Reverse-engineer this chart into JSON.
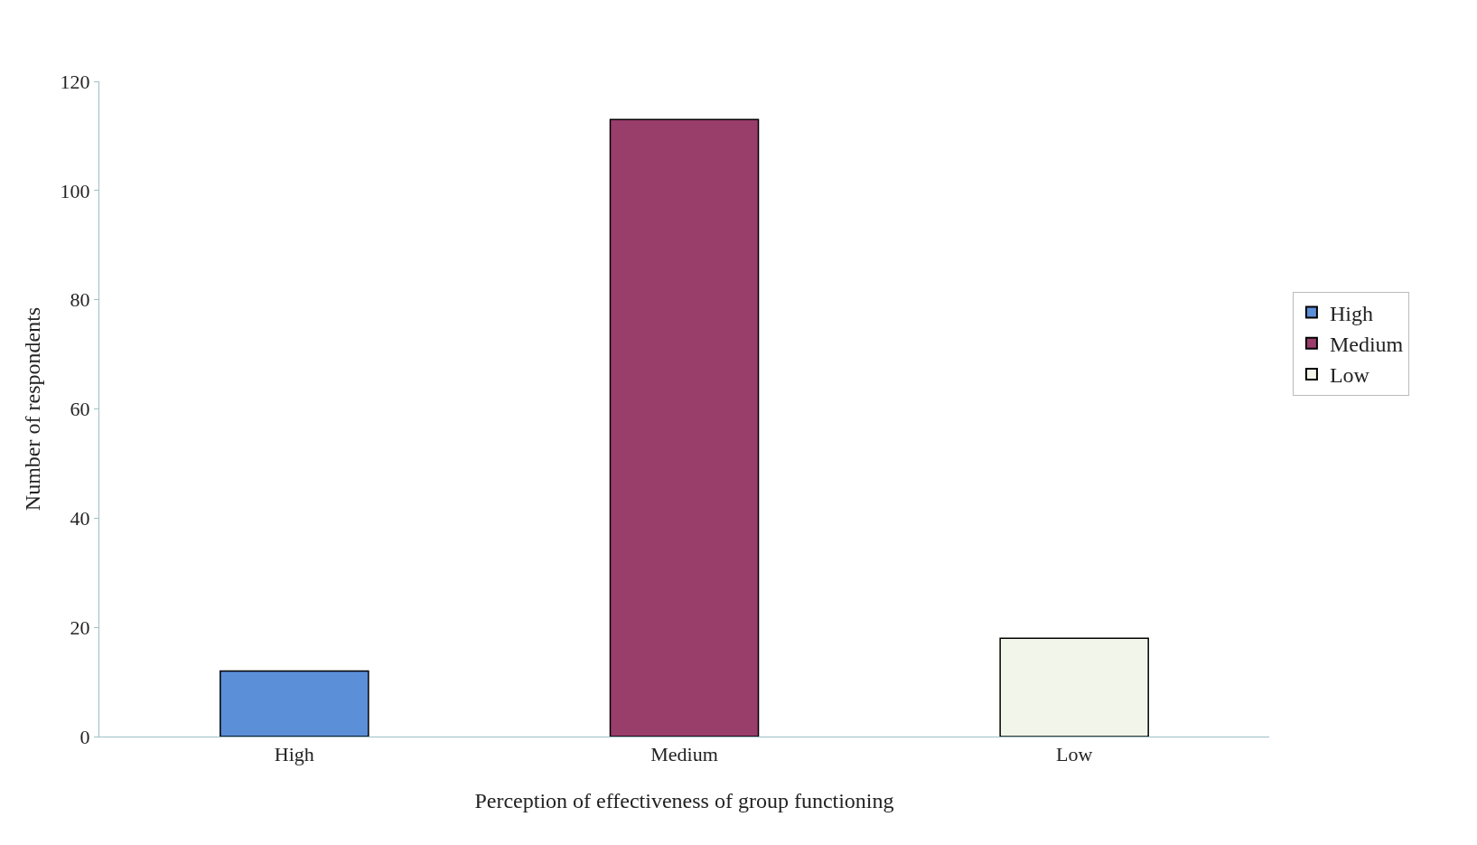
{
  "chart_data": {
    "type": "bar",
    "xlabel": "Perception of effectiveness of group functioning",
    "ylabel": "Number of respondents",
    "categories": [
      "High",
      "Medium",
      "Low"
    ],
    "series": [
      {
        "name": "High",
        "color": "#5b8fd8",
        "values": [
          12,
          null,
          null
        ]
      },
      {
        "name": "Medium",
        "color": "#993d6b",
        "values": [
          null,
          113,
          null
        ]
      },
      {
        "name": "Low",
        "color": "#f2f6ea",
        "values": [
          null,
          null,
          18
        ]
      }
    ],
    "ylim": [
      0,
      120
    ],
    "yticks": [
      0,
      20,
      40,
      60,
      80,
      100,
      120
    ],
    "legend": "right"
  }
}
